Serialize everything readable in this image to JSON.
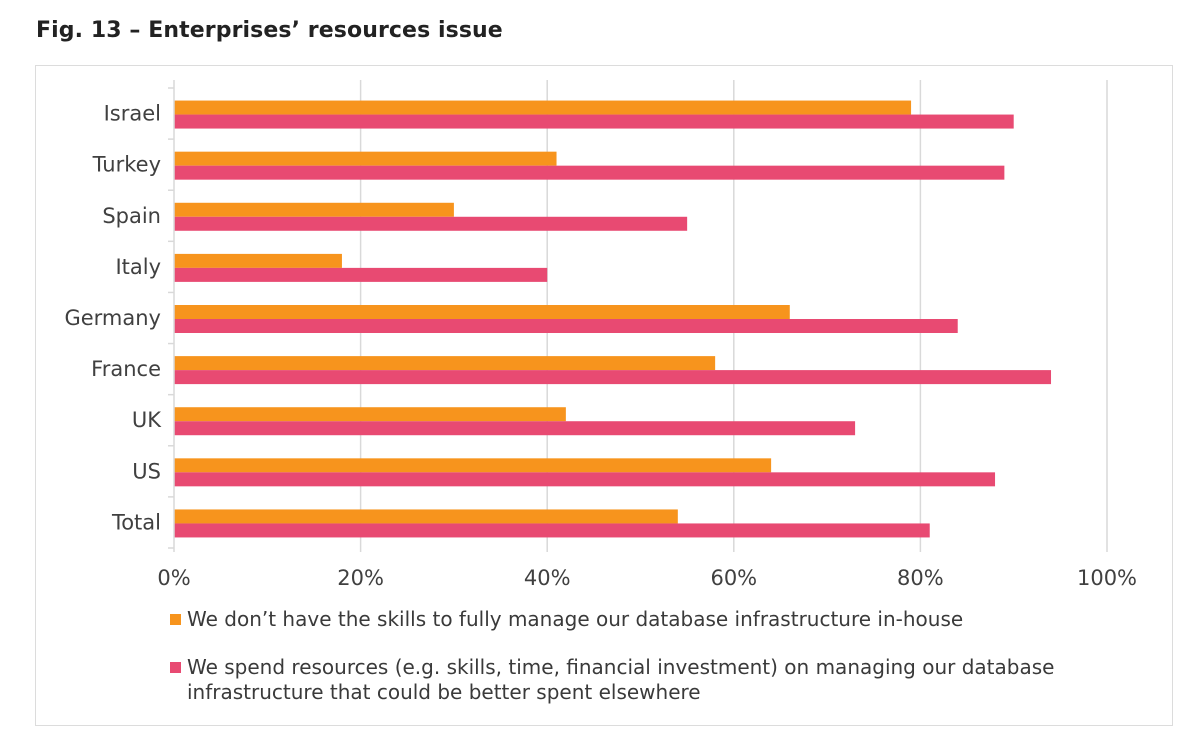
{
  "figure": {
    "title": "Fig. 13 – Enterprises’ resources issue"
  },
  "colors": {
    "series1": "#F7941D",
    "series2": "#E84A72",
    "grid": "#d9d9d9",
    "tick_text": "#404040"
  },
  "chart_data": {
    "type": "bar",
    "orientation": "horizontal",
    "categories": [
      "Israel",
      "Turkey",
      "Spain",
      "Italy",
      "Germany",
      "France",
      "UK",
      "US",
      "Total"
    ],
    "series": [
      {
        "name": "We don’t have the skills to fully manage our database infrastructure in-house",
        "values": [
          79,
          41,
          30,
          18,
          66,
          58,
          42,
          64,
          54
        ]
      },
      {
        "name": "We spend resources (e.g. skills, time, financial investment) on managing our database infrastructure that could be better spent elsewhere",
        "values": [
          90,
          89,
          55,
          40,
          84,
          94,
          73,
          88,
          81
        ]
      }
    ],
    "xlim": [
      0,
      100
    ],
    "xticks": [
      "0%",
      "20%",
      "40%",
      "60%",
      "80%",
      "100%"
    ],
    "xlabel": "",
    "ylabel": "",
    "grid": true,
    "legend_position": "bottom"
  },
  "legend": {
    "line1": "We don’t have the skills to fully manage our database infrastructure in-house",
    "line2a": "We spend resources (e.g. skills, time, financial investment) on managing our database",
    "line2b": "infrastructure that could be better spent elsewhere"
  }
}
